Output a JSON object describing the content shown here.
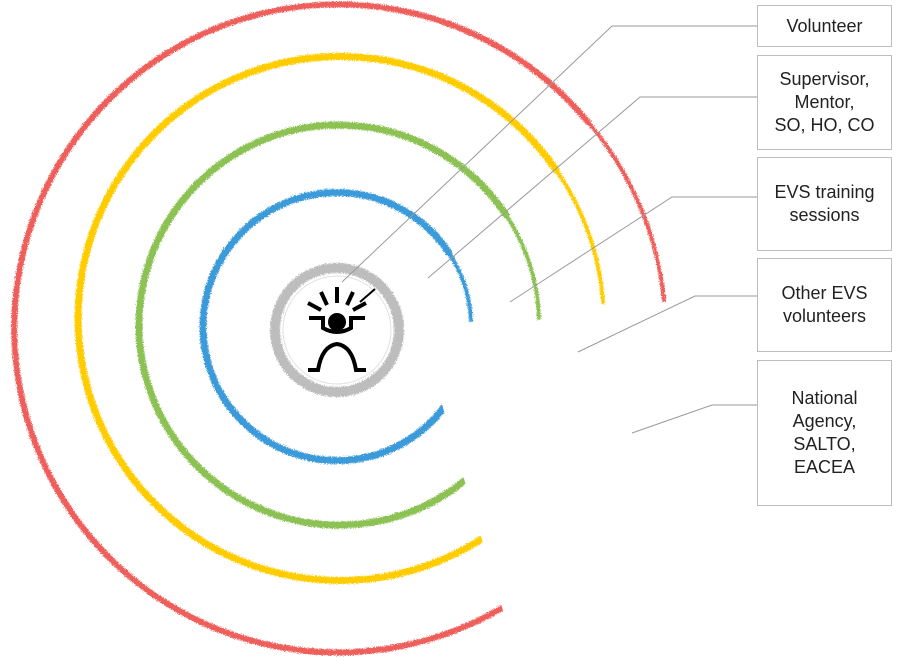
{
  "diagram": {
    "labels": {
      "volunteer": [
        "Volunteer"
      ],
      "supervisor": [
        "Supervisor,",
        "Mentor,",
        "SO, HO, CO"
      ],
      "training": [
        "EVS training",
        "sessions"
      ],
      "others": [
        "Other EVS",
        "volunteers"
      ],
      "agency": [
        "National",
        "Agency,",
        "SALTO,",
        "EACEA"
      ]
    },
    "ring_colors": {
      "volunteer": "#bdbdbd",
      "supervisor": "#3a9ad9",
      "training": "#8cc152",
      "others": "#ffcc00",
      "agency": "#ee5f5b"
    },
    "connector_color": "#9a9a9a",
    "icon": "volunteer-figure-icon"
  }
}
